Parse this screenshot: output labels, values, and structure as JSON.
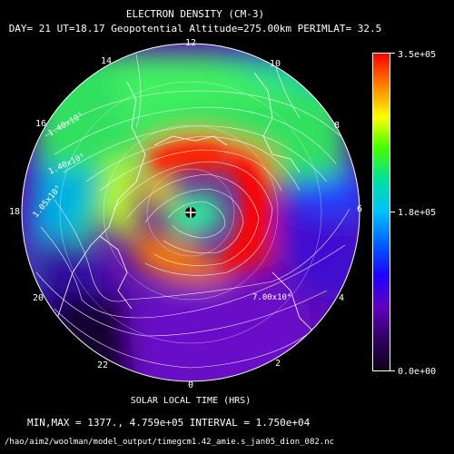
{
  "title": "ELECTRON DENSITY (CM-3)",
  "subtitle": "DAY= 21 UT=18.17 Geopotential Altitude=275.00km PERIMLAT= 32.5",
  "xlabel": "SOLAR LOCAL TIME (HRS)",
  "minmax_text": "MIN,MAX =       1377., 4.759e+05 INTERVAL =  1.750e+04",
  "file_path": "/hao/aim2/woolman/model_output/timegcm1.42_amie.s_jan05_dion_082.nc",
  "hour_labels": [
    "12",
    "14",
    "16",
    "18",
    "20",
    "22",
    "0",
    "2",
    "4",
    "6",
    "8",
    "10"
  ],
  "contour_labels": [
    "1.40x10⁵",
    "1.40x10⁵",
    "7.00x10⁴",
    "1.05x10⁵"
  ],
  "colorbar": {
    "labels": [
      "3.5e+05",
      "1.8e+05",
      "0.0e+00"
    ],
    "colors": [
      "#ff0000",
      "#ff8000",
      "#ffff00",
      "#40ff00",
      "#00e0a0",
      "#00c0ff",
      "#0060ff",
      "#2000ff",
      "#6000c0",
      "#300060",
      "#100018"
    ]
  },
  "colors": {
    "background": "#000000",
    "text": "#ffffff"
  }
}
